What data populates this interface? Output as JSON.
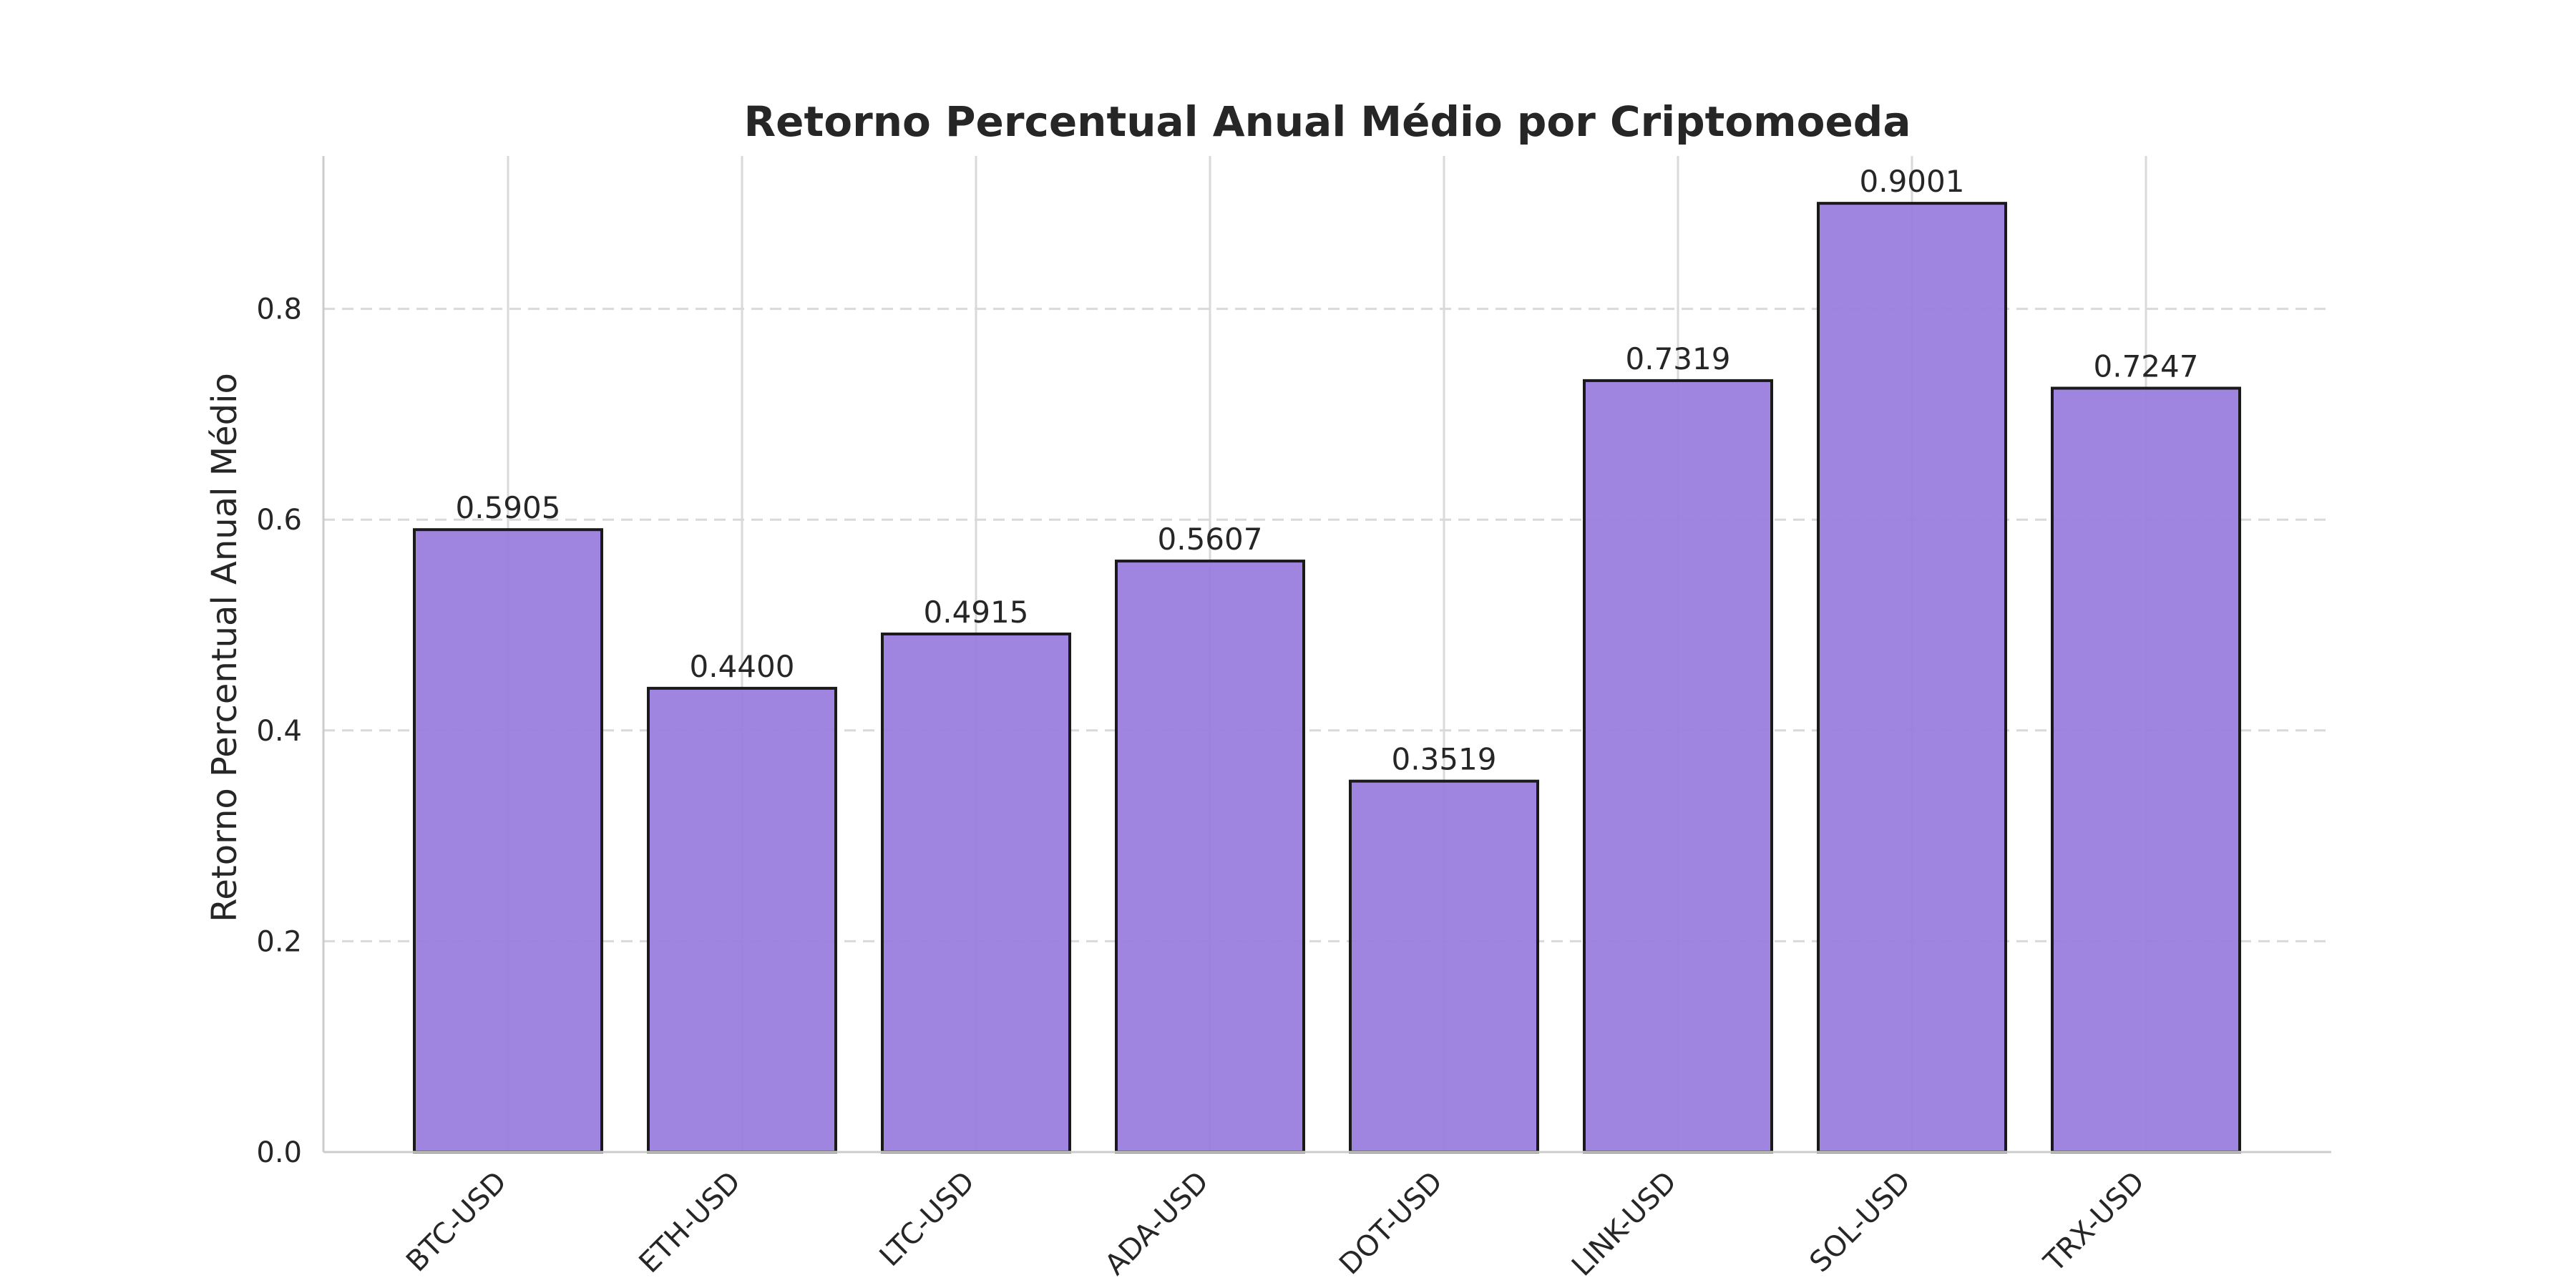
{
  "chart_data": {
    "type": "bar",
    "title": "Retorno Percentual Anual Médio por Criptomoeda",
    "xlabel": "",
    "ylabel": "Retorno Percentual Anual Médio",
    "categories": [
      "BTC-USD",
      "ETH-USD",
      "LTC-USD",
      "ADA-USD",
      "DOT-USD",
      "LINK-USD",
      "SOL-USD",
      "TRX-USD"
    ],
    "values": [
      0.5905,
      0.44,
      0.4915,
      0.5607,
      0.3519,
      0.7319,
      0.9001,
      0.7247
    ],
    "data_labels": [
      "0.5905",
      "0.4400",
      "0.4915",
      "0.5607",
      "0.3519",
      "0.7319",
      "0.9001",
      "0.7247"
    ],
    "yticks": [
      0.0,
      0.2,
      0.4,
      0.6,
      0.8
    ],
    "ytick_labels": [
      "0.0",
      "0.2",
      "0.4",
      "0.6",
      "0.8"
    ],
    "ylim": [
      0,
      0.945
    ],
    "grid": true,
    "legend": "none",
    "colors": {
      "bar_fill": "#9b7ede",
      "bar_edge": "#1a1a1a",
      "grid": "#d9d9d9",
      "axis": "#cccccc",
      "text": "#262626"
    }
  }
}
